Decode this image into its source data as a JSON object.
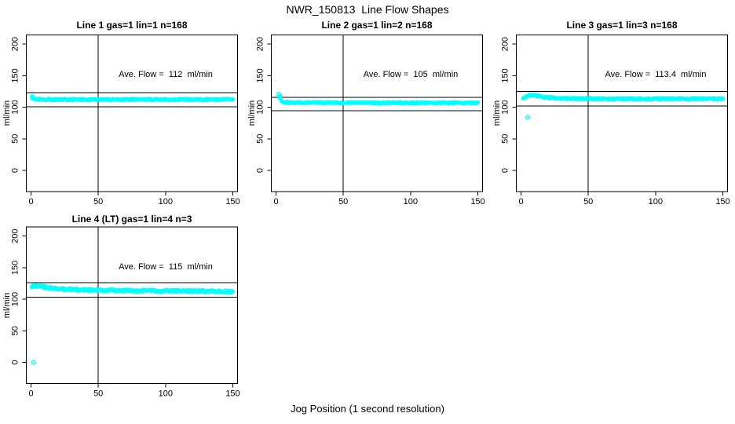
{
  "chart_data": {
    "type": "scatter",
    "title": "NWR_150813  Line Flow Shapes",
    "xlabel": "Jog Position (1 second resolution)",
    "point_color": "#00ffff",
    "axis_color": "#000000",
    "layout": "2x3 grid, 4 panels used",
    "panels": [
      {
        "title": "Line 1 gas=1 lin=1 n=168",
        "annotation": "Ave. Flow =  112  ml/min",
        "ave_flow": 112,
        "ylabel": "ml/min",
        "xlim": [
          -3.5,
          153.5
        ],
        "ylim": [
          -33.5,
          214.5
        ],
        "x_ticks": [
          0,
          50,
          100,
          150
        ],
        "y_ticks": [
          0,
          50,
          100,
          150,
          200
        ],
        "vline_x": 50,
        "ref_lines": [
          123.2,
          100.8
        ],
        "x_range": [
          1,
          150
        ],
        "band": 2.4,
        "dot_r": 1.8,
        "profile": [
          [
            1,
            114.5
          ],
          [
            4,
            112.8
          ],
          [
            15,
            112.2
          ],
          [
            150,
            112.2
          ]
        ],
        "lead_points": [
          [
            1,
            116.5
          ]
        ],
        "outliers": []
      },
      {
        "title": "Line 2 gas=1 lin=2 n=168",
        "annotation": "Ave. Flow =  105  ml/min",
        "ave_flow": 105,
        "ylabel": "ml/min",
        "xlim": [
          -3.5,
          153.5
        ],
        "ylim": [
          -33.5,
          214.5
        ],
        "x_ticks": [
          0,
          50,
          100,
          150
        ],
        "y_ticks": [
          0,
          50,
          100,
          150,
          200
        ],
        "vline_x": 50,
        "ref_lines": [
          115.5,
          94.5
        ],
        "x_range": [
          3,
          150
        ],
        "band": 2.4,
        "dot_r": 1.8,
        "profile": [
          [
            3,
            115
          ],
          [
            4,
            110
          ],
          [
            6,
            108.3
          ],
          [
            10,
            107.3
          ],
          [
            150,
            106.8
          ]
        ],
        "lead_points": [
          [
            2,
            120.5
          ],
          [
            3,
            117.5
          ]
        ],
        "outliers": []
      },
      {
        "title": "Line 3 gas=1 lin=3 n=168",
        "annotation": "Ave. Flow =  113.4  ml/min",
        "ave_flow": 113.4,
        "ylabel": "ml/min",
        "xlim": [
          -3.5,
          153.5
        ],
        "ylim": [
          -33.5,
          214.5
        ],
        "x_ticks": [
          0,
          50,
          100,
          150
        ],
        "y_ticks": [
          0,
          50,
          100,
          150,
          200
        ],
        "vline_x": 50,
        "ref_lines": [
          124.7,
          102.1
        ],
        "x_range": [
          2,
          150
        ],
        "band": 2.4,
        "dot_r": 1.8,
        "profile": [
          [
            2,
            113.5
          ],
          [
            4,
            116.5
          ],
          [
            7,
            118.8
          ],
          [
            11,
            118.2
          ],
          [
            18,
            115.8
          ],
          [
            30,
            114
          ],
          [
            60,
            113.3
          ],
          [
            150,
            113.2
          ]
        ],
        "lead_points": [],
        "outliers": [
          [
            5,
            84
          ]
        ]
      },
      {
        "title": "Line 4 (LT) gas=1 lin=4 n=3",
        "annotation": "Ave. Flow =  115  ml/min",
        "ave_flow": 115,
        "ylabel": "ml/min",
        "xlim": [
          -3.5,
          153.5
        ],
        "ylim": [
          -33.5,
          214.5
        ],
        "x_ticks": [
          0,
          50,
          100,
          150
        ],
        "y_ticks": [
          0,
          50,
          100,
          150,
          200
        ],
        "vline_x": 50,
        "ref_lines": [
          126.5,
          103.5
        ],
        "x_range": [
          1,
          150
        ],
        "band": 3.4,
        "dot_r": 1.9,
        "profile": [
          [
            1,
            120
          ],
          [
            4,
            121
          ],
          [
            8,
            120.3
          ],
          [
            14,
            117.8
          ],
          [
            25,
            116
          ],
          [
            45,
            114.5
          ],
          [
            80,
            113.5
          ],
          [
            120,
            112.8
          ],
          [
            150,
            112.2
          ]
        ],
        "lead_points": [],
        "outliers": [
          [
            2,
            0
          ]
        ]
      }
    ]
  }
}
